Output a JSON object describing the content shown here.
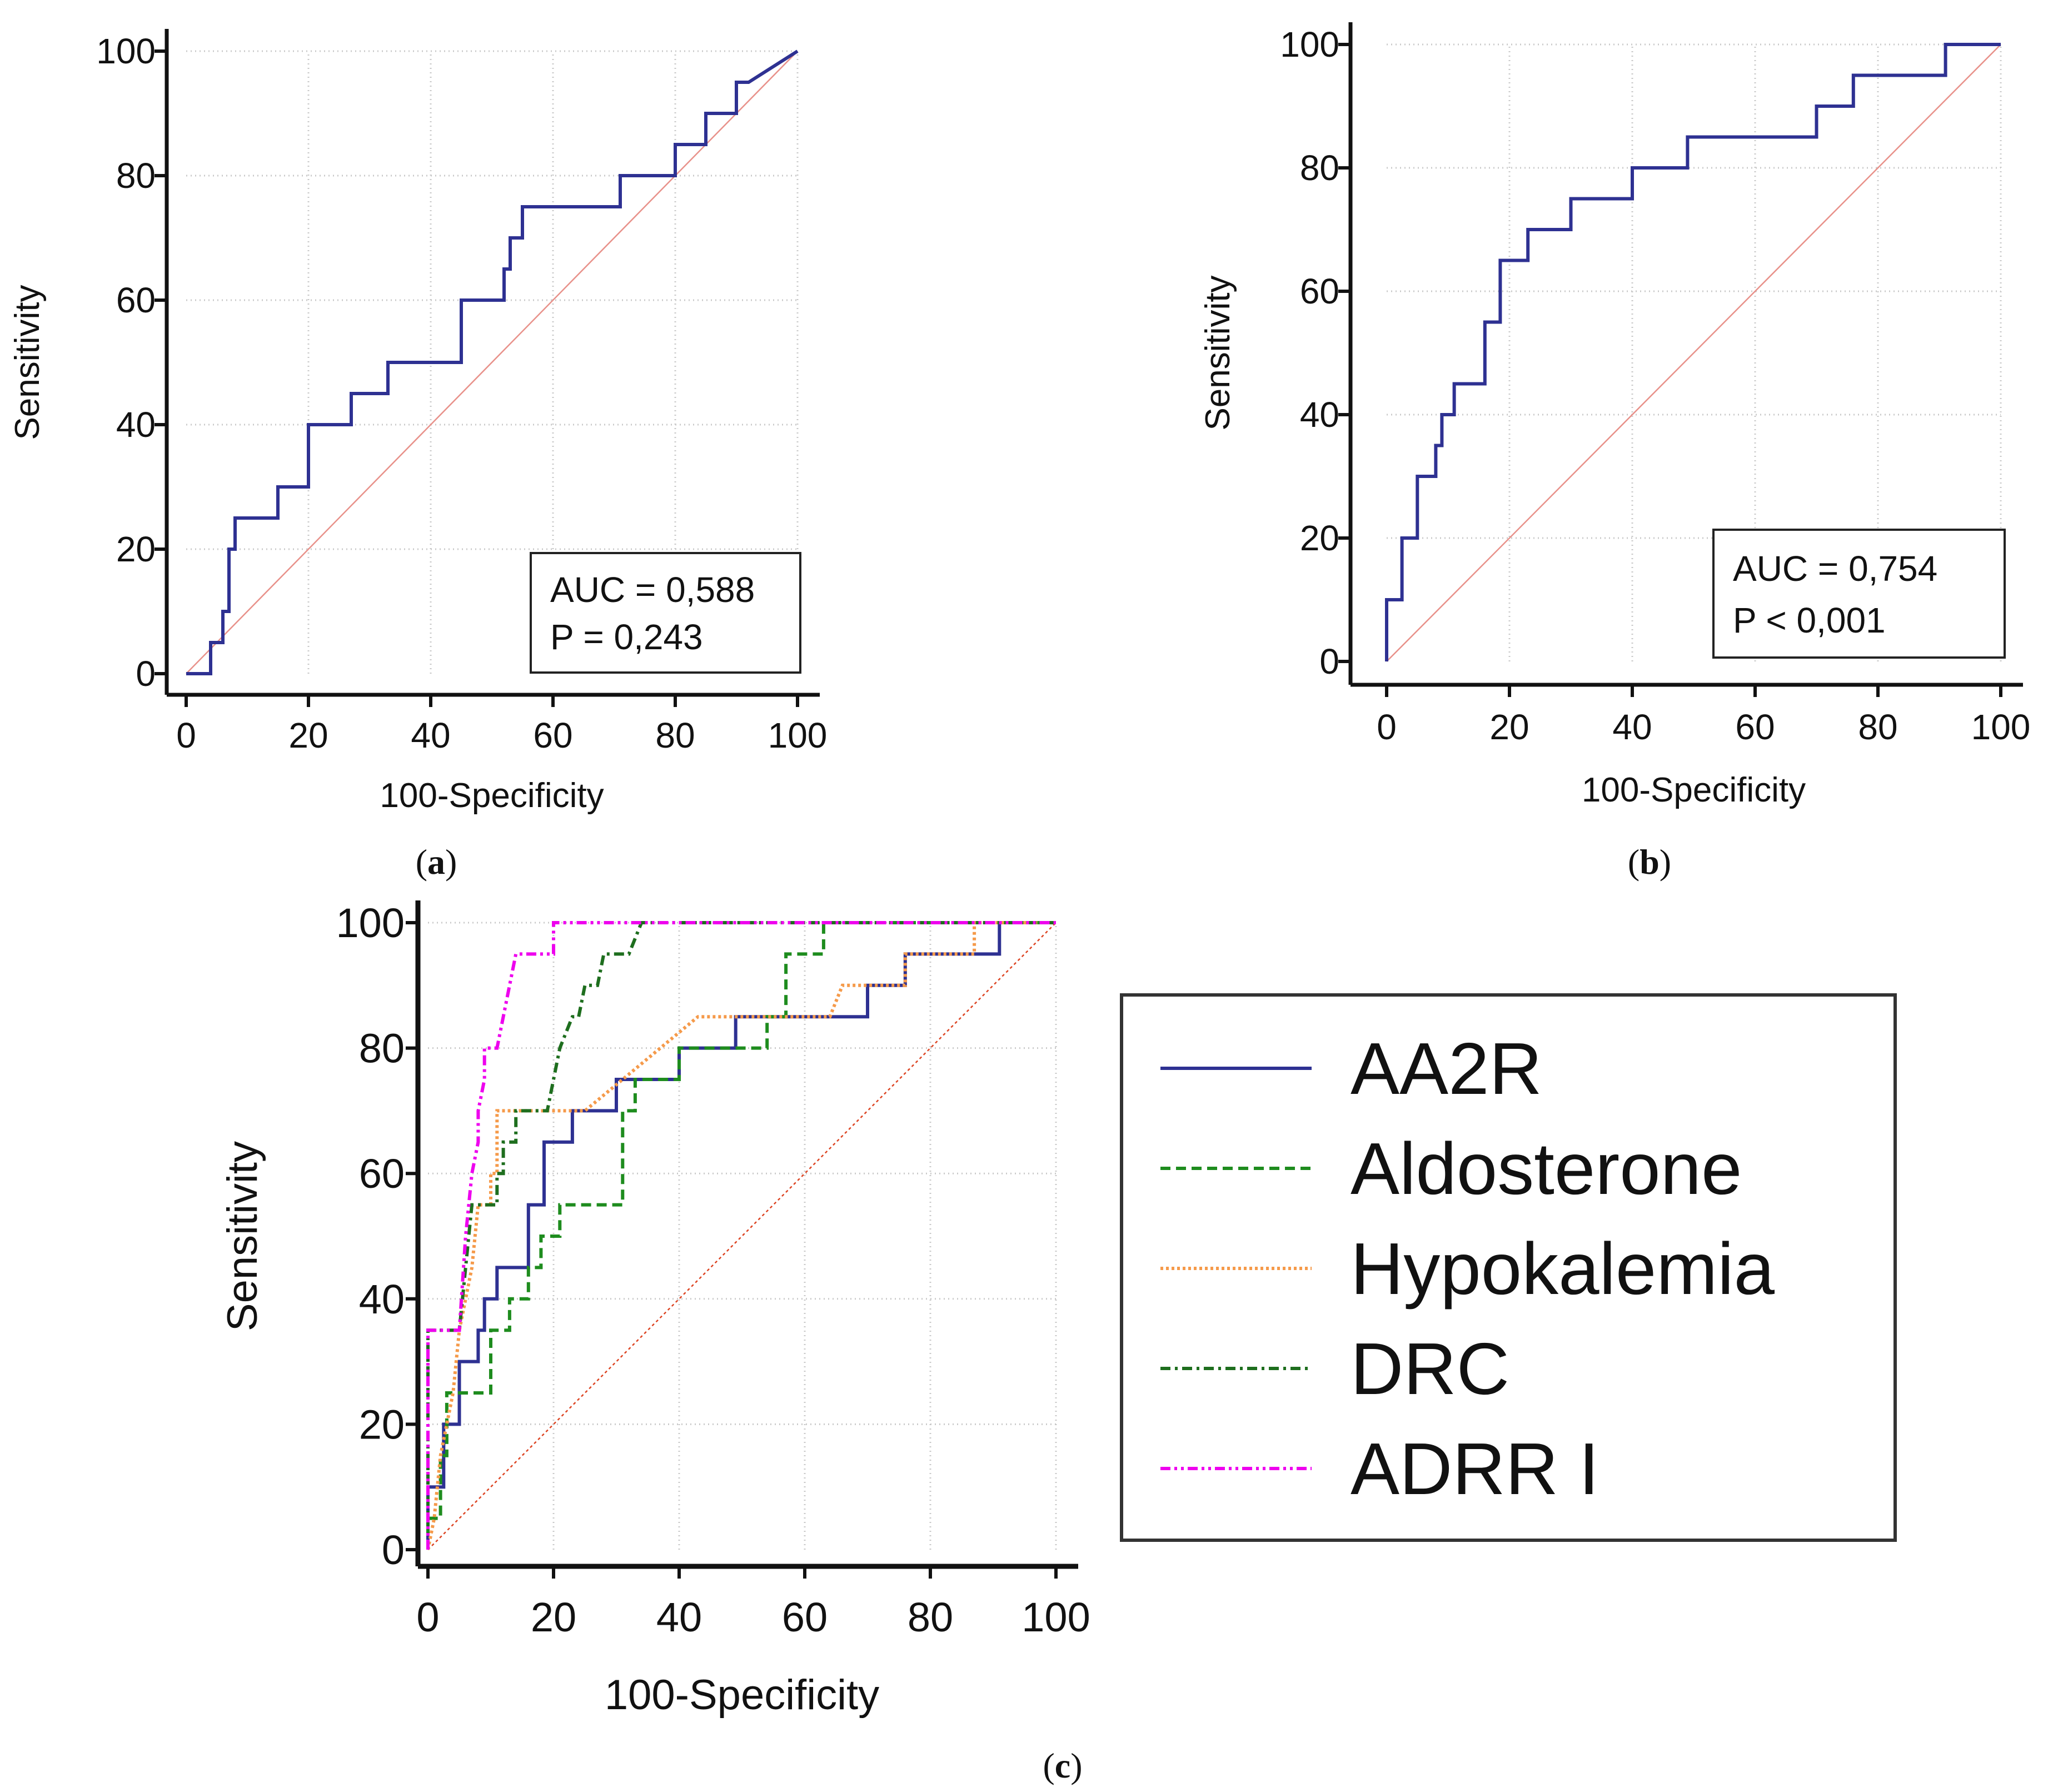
{
  "chart_data": [
    {
      "panel": "a",
      "panel_label": "a",
      "type": "line",
      "xlabel": "100-Specificity",
      "ylabel": "Sensitivity",
      "xlim": [
        0,
        100
      ],
      "ylim": [
        0,
        100
      ],
      "xticks": [
        0,
        20,
        40,
        60,
        80,
        100
      ],
      "yticks": [
        0,
        20,
        40,
        60,
        80,
        100
      ],
      "grid": true,
      "annotations": [
        "AUC = 0,588",
        "P = 0,243"
      ],
      "series": [
        {
          "name": "ROC",
          "color": "#2e3192",
          "style": "solid",
          "points": [
            [
              0,
              0
            ],
            [
              4,
              0
            ],
            [
              4,
              5
            ],
            [
              6,
              5
            ],
            [
              6,
              10
            ],
            [
              7,
              10
            ],
            [
              7,
              20
            ],
            [
              8,
              20
            ],
            [
              8,
              25
            ],
            [
              15,
              25
            ],
            [
              15,
              30
            ],
            [
              20,
              30
            ],
            [
              20,
              40
            ],
            [
              27,
              40
            ],
            [
              27,
              45
            ],
            [
              33,
              45
            ],
            [
              33,
              50
            ],
            [
              45,
              50
            ],
            [
              45,
              60
            ],
            [
              52,
              60
            ],
            [
              52,
              65
            ],
            [
              53,
              65
            ],
            [
              53,
              70
            ],
            [
              55,
              70
            ],
            [
              55,
              75
            ],
            [
              71,
              75
            ],
            [
              71,
              80
            ],
            [
              80,
              80
            ],
            [
              80,
              85
            ],
            [
              85,
              85
            ],
            [
              85,
              90
            ],
            [
              90,
              90
            ],
            [
              90,
              95
            ],
            [
              92,
              95
            ],
            [
              100,
              100
            ]
          ]
        },
        {
          "name": "Reference",
          "color": "#e8918a",
          "style": "solid",
          "points": [
            [
              0,
              0
            ],
            [
              100,
              100
            ]
          ]
        }
      ]
    },
    {
      "panel": "b",
      "panel_label": "b",
      "type": "line",
      "xlabel": "100-Specificity",
      "ylabel": "Sensitivity",
      "xlim": [
        0,
        100
      ],
      "ylim": [
        0,
        100
      ],
      "xticks": [
        0,
        20,
        40,
        60,
        80,
        100
      ],
      "yticks": [
        0,
        20,
        40,
        60,
        80,
        100
      ],
      "grid": true,
      "annotations": [
        "AUC = 0,754",
        "P < 0,001"
      ],
      "series": [
        {
          "name": "ROC",
          "color": "#2e3192",
          "style": "solid",
          "points": [
            [
              0,
              0
            ],
            [
              0,
              10
            ],
            [
              2.5,
              10
            ],
            [
              2.5,
              20
            ],
            [
              5,
              20
            ],
            [
              5,
              30
            ],
            [
              8,
              30
            ],
            [
              8,
              35
            ],
            [
              9,
              35
            ],
            [
              9,
              40
            ],
            [
              11,
              40
            ],
            [
              11,
              45
            ],
            [
              16,
              45
            ],
            [
              16,
              55
            ],
            [
              18.5,
              55
            ],
            [
              18.5,
              65
            ],
            [
              23,
              65
            ],
            [
              23,
              70
            ],
            [
              30,
              70
            ],
            [
              30,
              75
            ],
            [
              40,
              75
            ],
            [
              40,
              80
            ],
            [
              49,
              80
            ],
            [
              49,
              85
            ],
            [
              70,
              85
            ],
            [
              70,
              90
            ],
            [
              76,
              90
            ],
            [
              76,
              95
            ],
            [
              91,
              95
            ],
            [
              91,
              100
            ],
            [
              100,
              100
            ]
          ]
        },
        {
          "name": "Reference",
          "color": "#e8918a",
          "style": "solid",
          "points": [
            [
              0,
              0
            ],
            [
              100,
              100
            ]
          ]
        }
      ]
    },
    {
      "panel": "c",
      "panel_label": "c",
      "type": "line",
      "xlabel": "100-Specificity",
      "ylabel": "Sensitivity",
      "xlim": [
        0,
        100
      ],
      "ylim": [
        0,
        100
      ],
      "xticks": [
        0,
        20,
        40,
        60,
        80,
        100
      ],
      "yticks": [
        0,
        20,
        40,
        60,
        80,
        100
      ],
      "grid": true,
      "legend": "right",
      "series": [
        {
          "name": "AA2R",
          "color": "#2e3192",
          "style": "solid",
          "points": [
            [
              0,
              0
            ],
            [
              0,
              10
            ],
            [
              2.5,
              10
            ],
            [
              2.5,
              20
            ],
            [
              5,
              20
            ],
            [
              5,
              30
            ],
            [
              8,
              30
            ],
            [
              8,
              35
            ],
            [
              9,
              35
            ],
            [
              9,
              40
            ],
            [
              11,
              40
            ],
            [
              11,
              45
            ],
            [
              16,
              45
            ],
            [
              16,
              55
            ],
            [
              18.5,
              55
            ],
            [
              18.5,
              65
            ],
            [
              23,
              65
            ],
            [
              23,
              70
            ],
            [
              30,
              70
            ],
            [
              30,
              75
            ],
            [
              40,
              75
            ],
            [
              40,
              80
            ],
            [
              49,
              80
            ],
            [
              49,
              85
            ],
            [
              70,
              85
            ],
            [
              70,
              90
            ],
            [
              76,
              90
            ],
            [
              76,
              95
            ],
            [
              91,
              95
            ],
            [
              91,
              100
            ],
            [
              100,
              100
            ]
          ]
        },
        {
          "name": "Aldosterone",
          "color": "#1e8c1e",
          "style": "dashed",
          "points": [
            [
              0,
              0
            ],
            [
              0,
              5
            ],
            [
              2,
              5
            ],
            [
              2,
              15
            ],
            [
              3,
              15
            ],
            [
              3,
              25
            ],
            [
              10,
              25
            ],
            [
              10,
              35
            ],
            [
              13,
              35
            ],
            [
              13,
              40
            ],
            [
              16,
              40
            ],
            [
              16,
              45
            ],
            [
              18,
              45
            ],
            [
              18,
              50
            ],
            [
              21,
              50
            ],
            [
              21,
              55
            ],
            [
              31,
              55
            ],
            [
              31,
              70
            ],
            [
              33,
              70
            ],
            [
              33,
              75
            ],
            [
              40,
              75
            ],
            [
              40,
              80
            ],
            [
              54,
              80
            ],
            [
              54,
              85
            ],
            [
              57,
              85
            ],
            [
              57,
              95
            ],
            [
              63,
              95
            ],
            [
              63,
              100
            ],
            [
              100,
              100
            ]
          ]
        },
        {
          "name": "Hypokalemia",
          "color": "#f59a4a",
          "style": "dotted",
          "points": [
            [
              0,
              0
            ],
            [
              1,
              5
            ],
            [
              2,
              15
            ],
            [
              3,
              20
            ],
            [
              4,
              25
            ],
            [
              5,
              35
            ],
            [
              6,
              40
            ],
            [
              7,
              45
            ],
            [
              8,
              55
            ],
            [
              10,
              55
            ],
            [
              10,
              60
            ],
            [
              11,
              60
            ],
            [
              11,
              70
            ],
            [
              25,
              70
            ],
            [
              31,
              75
            ],
            [
              37,
              80
            ],
            [
              43,
              85
            ],
            [
              64,
              85
            ],
            [
              66,
              90
            ],
            [
              76,
              90
            ],
            [
              76,
              95
            ],
            [
              87,
              95
            ],
            [
              87,
              100
            ],
            [
              100,
              100
            ]
          ]
        },
        {
          "name": "DRC",
          "color": "#1e6e1e",
          "style": "dashdot",
          "points": [
            [
              0,
              0
            ],
            [
              0,
              35
            ],
            [
              5,
              35
            ],
            [
              6,
              45
            ],
            [
              7,
              55
            ],
            [
              11,
              55
            ],
            [
              11,
              60
            ],
            [
              12,
              60
            ],
            [
              12,
              65
            ],
            [
              14,
              65
            ],
            [
              14,
              70
            ],
            [
              19,
              70
            ],
            [
              20,
              75
            ],
            [
              21,
              80
            ],
            [
              23,
              85
            ],
            [
              24,
              85
            ],
            [
              25,
              90
            ],
            [
              27,
              90
            ],
            [
              28,
              95
            ],
            [
              32,
              95
            ],
            [
              34,
              100
            ],
            [
              100,
              100
            ]
          ]
        },
        {
          "name": "ADRR I",
          "color": "#ee00ee",
          "style": "dashdotdot",
          "points": [
            [
              0,
              0
            ],
            [
              0,
              35
            ],
            [
              5,
              35
            ],
            [
              6,
              50
            ],
            [
              7,
              60
            ],
            [
              8,
              65
            ],
            [
              8,
              70
            ],
            [
              9,
              75
            ],
            [
              9,
              80
            ],
            [
              11,
              80
            ],
            [
              12,
              85
            ],
            [
              13,
              90
            ],
            [
              14,
              95
            ],
            [
              20,
              95
            ],
            [
              20,
              100
            ],
            [
              100,
              100
            ]
          ]
        },
        {
          "name": "Reference",
          "color": "#dd4422",
          "style": "dotted",
          "points": [
            [
              0,
              0
            ],
            [
              100,
              100
            ]
          ]
        }
      ]
    }
  ]
}
